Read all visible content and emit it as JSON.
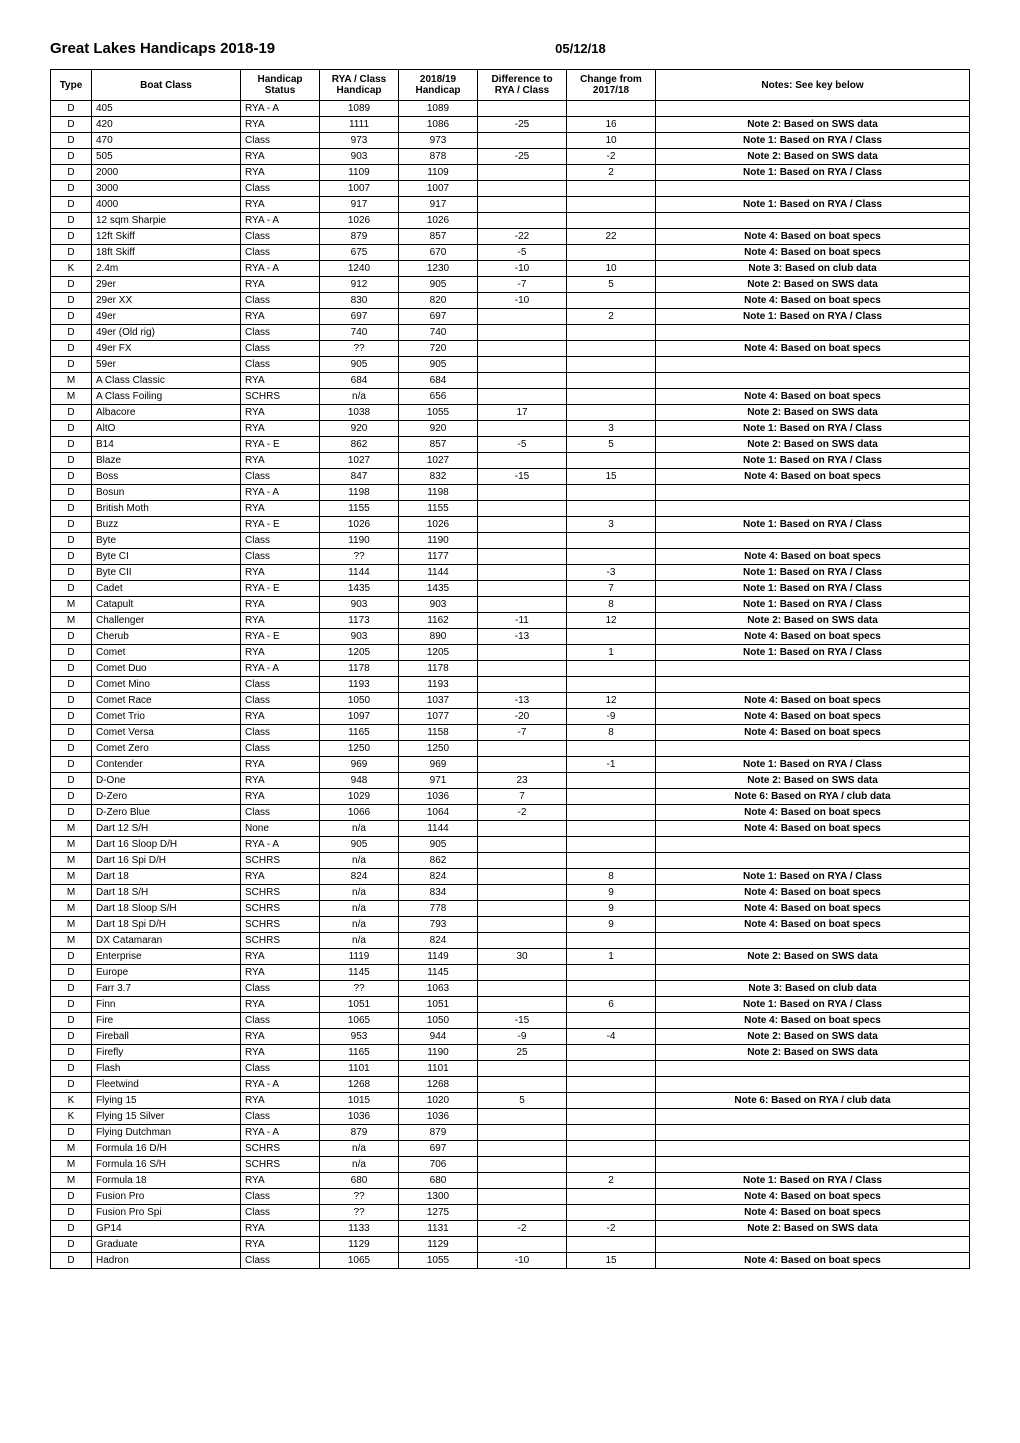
{
  "page": {
    "title": "Great Lakes Handicaps 2018-19",
    "date": "05/12/18"
  },
  "table": {
    "headers": {
      "type": "Type",
      "boatclass": "Boat Class",
      "status": "Handicap Status",
      "ryaclass": "RYA / Class Handicap",
      "h1819": "2018/19 Handicap",
      "diff": "Difference to RYA / Class",
      "change": "Change from 2017/18",
      "notes": "Notes:  See key below"
    },
    "rows": [
      {
        "type": "D",
        "boatclass": "405",
        "status": "RYA - A",
        "ryaclass": "1089",
        "h1819": "1089",
        "diff": "",
        "change": "",
        "notes": ""
      },
      {
        "type": "D",
        "boatclass": "420",
        "status": "RYA",
        "ryaclass": "1111",
        "h1819": "1086",
        "diff": "-25",
        "change": "16",
        "notes": "Note 2: Based on SWS data"
      },
      {
        "type": "D",
        "boatclass": "470",
        "status": "Class",
        "ryaclass": "973",
        "h1819": "973",
        "diff": "",
        "change": "10",
        "notes": "Note 1: Based on RYA / Class"
      },
      {
        "type": "D",
        "boatclass": "505",
        "status": "RYA",
        "ryaclass": "903",
        "h1819": "878",
        "diff": "-25",
        "change": "-2",
        "notes": "Note 2: Based on SWS data"
      },
      {
        "type": "D",
        "boatclass": "2000",
        "status": "RYA",
        "ryaclass": "1109",
        "h1819": "1109",
        "diff": "",
        "change": "2",
        "notes": "Note 1: Based on RYA / Class"
      },
      {
        "type": "D",
        "boatclass": "3000",
        "status": "Class",
        "ryaclass": "1007",
        "h1819": "1007",
        "diff": "",
        "change": "",
        "notes": ""
      },
      {
        "type": "D",
        "boatclass": "4000",
        "status": "RYA",
        "ryaclass": "917",
        "h1819": "917",
        "diff": "",
        "change": "",
        "notes": "Note 1: Based on RYA / Class"
      },
      {
        "type": "D",
        "boatclass": "12 sqm Sharpie",
        "status": "RYA - A",
        "ryaclass": "1026",
        "h1819": "1026",
        "diff": "",
        "change": "",
        "notes": ""
      },
      {
        "type": "D",
        "boatclass": "12ft Skiff",
        "status": "Class",
        "ryaclass": "879",
        "h1819": "857",
        "diff": "-22",
        "change": "22",
        "notes": "Note 4: Based on boat specs"
      },
      {
        "type": "D",
        "boatclass": "18ft Skiff",
        "status": "Class",
        "ryaclass": "675",
        "h1819": "670",
        "diff": "-5",
        "change": "",
        "notes": "Note 4: Based on boat specs"
      },
      {
        "type": "K",
        "boatclass": "2.4m",
        "status": "RYA - A",
        "ryaclass": "1240",
        "h1819": "1230",
        "diff": "-10",
        "change": "10",
        "notes": "Note 3: Based on club data"
      },
      {
        "type": "D",
        "boatclass": "29er",
        "status": "RYA",
        "ryaclass": "912",
        "h1819": "905",
        "diff": "-7",
        "change": "5",
        "notes": "Note 2: Based on SWS data"
      },
      {
        "type": "D",
        "boatclass": "29er XX",
        "status": "Class",
        "ryaclass": "830",
        "h1819": "820",
        "diff": "-10",
        "change": "",
        "notes": "Note 4: Based on boat specs"
      },
      {
        "type": "D",
        "boatclass": "49er",
        "status": "RYA",
        "ryaclass": "697",
        "h1819": "697",
        "diff": "",
        "change": "2",
        "notes": "Note 1: Based on RYA / Class"
      },
      {
        "type": "D",
        "boatclass": "49er (Old rig)",
        "status": "Class",
        "ryaclass": "740",
        "h1819": "740",
        "diff": "",
        "change": "",
        "notes": ""
      },
      {
        "type": "D",
        "boatclass": "49er FX",
        "status": "Class",
        "ryaclass": "??",
        "h1819": "720",
        "diff": "",
        "change": "",
        "notes": "Note 4: Based on boat specs"
      },
      {
        "type": "D",
        "boatclass": "59er",
        "status": "Class",
        "ryaclass": "905",
        "h1819": "905",
        "diff": "",
        "change": "",
        "notes": ""
      },
      {
        "type": "M",
        "boatclass": "A Class Classic",
        "status": "RYA",
        "ryaclass": "684",
        "h1819": "684",
        "diff": "",
        "change": "",
        "notes": ""
      },
      {
        "type": "M",
        "boatclass": "A Class Foiling",
        "status": "SCHRS",
        "ryaclass": "n/a",
        "h1819": "656",
        "diff": "",
        "change": "",
        "notes": "Note 4: Based on boat specs"
      },
      {
        "type": "D",
        "boatclass": "Albacore",
        "status": "RYA",
        "ryaclass": "1038",
        "h1819": "1055",
        "diff": "17",
        "change": "",
        "notes": "Note 2: Based on SWS data"
      },
      {
        "type": "D",
        "boatclass": "AltO",
        "status": "RYA",
        "ryaclass": "920",
        "h1819": "920",
        "diff": "",
        "change": "3",
        "notes": "Note 1: Based on RYA / Class"
      },
      {
        "type": "D",
        "boatclass": "B14",
        "status": "RYA - E",
        "ryaclass": "862",
        "h1819": "857",
        "diff": "-5",
        "change": "5",
        "notes": "Note 2: Based on SWS data"
      },
      {
        "type": "D",
        "boatclass": "Blaze",
        "status": "RYA",
        "ryaclass": "1027",
        "h1819": "1027",
        "diff": "",
        "change": "",
        "notes": "Note 1: Based on RYA / Class"
      },
      {
        "type": "D",
        "boatclass": "Boss",
        "status": "Class",
        "ryaclass": "847",
        "h1819": "832",
        "diff": "-15",
        "change": "15",
        "notes": "Note 4: Based on boat specs"
      },
      {
        "type": "D",
        "boatclass": "Bosun",
        "status": "RYA - A",
        "ryaclass": "1198",
        "h1819": "1198",
        "diff": "",
        "change": "",
        "notes": ""
      },
      {
        "type": "D",
        "boatclass": "British Moth",
        "status": "RYA",
        "ryaclass": "1155",
        "h1819": "1155",
        "diff": "",
        "change": "",
        "notes": ""
      },
      {
        "type": "D",
        "boatclass": "Buzz",
        "status": "RYA - E",
        "ryaclass": "1026",
        "h1819": "1026",
        "diff": "",
        "change": "3",
        "notes": "Note 1: Based on RYA / Class"
      },
      {
        "type": "D",
        "boatclass": "Byte",
        "status": "Class",
        "ryaclass": "1190",
        "h1819": "1190",
        "diff": "",
        "change": "",
        "notes": ""
      },
      {
        "type": "D",
        "boatclass": "Byte CI",
        "status": "Class",
        "ryaclass": "??",
        "h1819": "1177",
        "diff": "",
        "change": "",
        "notes": "Note 4: Based on boat specs"
      },
      {
        "type": "D",
        "boatclass": "Byte CII",
        "status": "RYA",
        "ryaclass": "1144",
        "h1819": "1144",
        "diff": "",
        "change": "-3",
        "notes": "Note 1: Based on RYA / Class"
      },
      {
        "type": "D",
        "boatclass": "Cadet",
        "status": "RYA - E",
        "ryaclass": "1435",
        "h1819": "1435",
        "diff": "",
        "change": "7",
        "notes": "Note 1: Based on RYA / Class"
      },
      {
        "type": "M",
        "boatclass": "Catapult",
        "status": "RYA",
        "ryaclass": "903",
        "h1819": "903",
        "diff": "",
        "change": "8",
        "notes": "Note 1: Based on RYA / Class"
      },
      {
        "type": "M",
        "boatclass": "Challenger",
        "status": "RYA",
        "ryaclass": "1173",
        "h1819": "1162",
        "diff": "-11",
        "change": "12",
        "notes": "Note 2: Based on SWS data"
      },
      {
        "type": "D",
        "boatclass": "Cherub",
        "status": "RYA - E",
        "ryaclass": "903",
        "h1819": "890",
        "diff": "-13",
        "change": "",
        "notes": "Note 4: Based on boat specs"
      },
      {
        "type": "D",
        "boatclass": "Comet",
        "status": "RYA",
        "ryaclass": "1205",
        "h1819": "1205",
        "diff": "",
        "change": "1",
        "notes": "Note 1: Based on RYA / Class"
      },
      {
        "type": "D",
        "boatclass": "Comet Duo",
        "status": "RYA - A",
        "ryaclass": "1178",
        "h1819": "1178",
        "diff": "",
        "change": "",
        "notes": ""
      },
      {
        "type": "D",
        "boatclass": "Comet Mino",
        "status": "Class",
        "ryaclass": "1193",
        "h1819": "1193",
        "diff": "",
        "change": "",
        "notes": ""
      },
      {
        "type": "D",
        "boatclass": "Comet Race",
        "status": "Class",
        "ryaclass": "1050",
        "h1819": "1037",
        "diff": "-13",
        "change": "12",
        "notes": "Note 4: Based on boat specs"
      },
      {
        "type": "D",
        "boatclass": "Comet Trio",
        "status": "RYA",
        "ryaclass": "1097",
        "h1819": "1077",
        "diff": "-20",
        "change": "-9",
        "notes": "Note 4: Based on boat specs"
      },
      {
        "type": "D",
        "boatclass": "Comet Versa",
        "status": "Class",
        "ryaclass": "1165",
        "h1819": "1158",
        "diff": "-7",
        "change": "8",
        "notes": "Note 4: Based on boat specs"
      },
      {
        "type": "D",
        "boatclass": "Comet Zero",
        "status": "Class",
        "ryaclass": "1250",
        "h1819": "1250",
        "diff": "",
        "change": "",
        "notes": ""
      },
      {
        "type": "D",
        "boatclass": "Contender",
        "status": "RYA",
        "ryaclass": "969",
        "h1819": "969",
        "diff": "",
        "change": "-1",
        "notes": "Note 1: Based on RYA / Class"
      },
      {
        "type": "D",
        "boatclass": "D-One",
        "status": "RYA",
        "ryaclass": "948",
        "h1819": "971",
        "diff": "23",
        "change": "",
        "notes": "Note 2: Based on SWS data"
      },
      {
        "type": "D",
        "boatclass": "D-Zero",
        "status": "RYA",
        "ryaclass": "1029",
        "h1819": "1036",
        "diff": "7",
        "change": "",
        "notes": "Note 6: Based on RYA / club data"
      },
      {
        "type": "D",
        "boatclass": "D-Zero Blue",
        "status": "Class",
        "ryaclass": "1066",
        "h1819": "1064",
        "diff": "-2",
        "change": "",
        "notes": "Note 4: Based on boat specs"
      },
      {
        "type": "M",
        "boatclass": "Dart 12 S/H",
        "status": "None",
        "ryaclass": "n/a",
        "h1819": "1144",
        "diff": "",
        "change": "",
        "notes": "Note 4: Based on boat specs"
      },
      {
        "type": "M",
        "boatclass": "Dart 16 Sloop D/H",
        "status": "RYA - A",
        "ryaclass": "905",
        "h1819": "905",
        "diff": "",
        "change": "",
        "notes": ""
      },
      {
        "type": "M",
        "boatclass": "Dart 16 Spi D/H",
        "status": "SCHRS",
        "ryaclass": "n/a",
        "h1819": "862",
        "diff": "",
        "change": "",
        "notes": ""
      },
      {
        "type": "M",
        "boatclass": "Dart 18",
        "status": "RYA",
        "ryaclass": "824",
        "h1819": "824",
        "diff": "",
        "change": "8",
        "notes": "Note 1: Based on RYA / Class"
      },
      {
        "type": "M",
        "boatclass": "Dart 18 S/H",
        "status": "SCHRS",
        "ryaclass": "n/a",
        "h1819": "834",
        "diff": "",
        "change": "9",
        "notes": "Note 4: Based on boat specs"
      },
      {
        "type": "M",
        "boatclass": "Dart 18 Sloop S/H",
        "status": "SCHRS",
        "ryaclass": "n/a",
        "h1819": "778",
        "diff": "",
        "change": "9",
        "notes": "Note 4: Based on boat specs"
      },
      {
        "type": "M",
        "boatclass": "Dart 18 Spi D/H",
        "status": "SCHRS",
        "ryaclass": "n/a",
        "h1819": "793",
        "diff": "",
        "change": "9",
        "notes": "Note 4: Based on boat specs"
      },
      {
        "type": "M",
        "boatclass": "DX Catamaran",
        "status": "SCHRS",
        "ryaclass": "n/a",
        "h1819": "824",
        "diff": "",
        "change": "",
        "notes": ""
      },
      {
        "type": "D",
        "boatclass": "Enterprise",
        "status": "RYA",
        "ryaclass": "1119",
        "h1819": "1149",
        "diff": "30",
        "change": "1",
        "notes": "Note 2: Based on SWS data"
      },
      {
        "type": "D",
        "boatclass": "Europe",
        "status": "RYA",
        "ryaclass": "1145",
        "h1819": "1145",
        "diff": "",
        "change": "",
        "notes": ""
      },
      {
        "type": "D",
        "boatclass": "Farr 3.7",
        "status": "Class",
        "ryaclass": "??",
        "h1819": "1063",
        "diff": "",
        "change": "",
        "notes": "Note 3: Based on club data"
      },
      {
        "type": "D",
        "boatclass": "Finn",
        "status": "RYA",
        "ryaclass": "1051",
        "h1819": "1051",
        "diff": "",
        "change": "6",
        "notes": "Note 1: Based on RYA / Class"
      },
      {
        "type": "D",
        "boatclass": "Fire",
        "status": "Class",
        "ryaclass": "1065",
        "h1819": "1050",
        "diff": "-15",
        "change": "",
        "notes": "Note 4: Based on boat specs"
      },
      {
        "type": "D",
        "boatclass": "Fireball",
        "status": "RYA",
        "ryaclass": "953",
        "h1819": "944",
        "diff": "-9",
        "change": "-4",
        "notes": "Note 2: Based on SWS data"
      },
      {
        "type": "D",
        "boatclass": "Firefly",
        "status": "RYA",
        "ryaclass": "1165",
        "h1819": "1190",
        "diff": "25",
        "change": "",
        "notes": "Note 2: Based on SWS data"
      },
      {
        "type": "D",
        "boatclass": "Flash",
        "status": "Class",
        "ryaclass": "1101",
        "h1819": "1101",
        "diff": "",
        "change": "",
        "notes": ""
      },
      {
        "type": "D",
        "boatclass": "Fleetwind",
        "status": "RYA - A",
        "ryaclass": "1268",
        "h1819": "1268",
        "diff": "",
        "change": "",
        "notes": ""
      },
      {
        "type": "K",
        "boatclass": "Flying 15",
        "status": "RYA",
        "ryaclass": "1015",
        "h1819": "1020",
        "diff": "5",
        "change": "",
        "notes": "Note 6: Based on RYA / club data"
      },
      {
        "type": "K",
        "boatclass": "Flying 15 Silver",
        "status": "Class",
        "ryaclass": "1036",
        "h1819": "1036",
        "diff": "",
        "change": "",
        "notes": ""
      },
      {
        "type": "D",
        "boatclass": "Flying Dutchman",
        "status": "RYA - A",
        "ryaclass": "879",
        "h1819": "879",
        "diff": "",
        "change": "",
        "notes": ""
      },
      {
        "type": "M",
        "boatclass": "Formula 16 D/H",
        "status": "SCHRS",
        "ryaclass": "n/a",
        "h1819": "697",
        "diff": "",
        "change": "",
        "notes": ""
      },
      {
        "type": "M",
        "boatclass": "Formula 16 S/H",
        "status": "SCHRS",
        "ryaclass": "n/a",
        "h1819": "706",
        "diff": "",
        "change": "",
        "notes": ""
      },
      {
        "type": "M",
        "boatclass": "Formula 18",
        "status": "RYA",
        "ryaclass": "680",
        "h1819": "680",
        "diff": "",
        "change": "2",
        "notes": "Note 1: Based on RYA / Class"
      },
      {
        "type": "D",
        "boatclass": "Fusion Pro",
        "status": "Class",
        "ryaclass": "??",
        "h1819": "1300",
        "diff": "",
        "change": "",
        "notes": "Note 4: Based on boat specs"
      },
      {
        "type": "D",
        "boatclass": "Fusion Pro Spi",
        "status": "Class",
        "ryaclass": "??",
        "h1819": "1275",
        "diff": "",
        "change": "",
        "notes": "Note 4: Based on boat specs"
      },
      {
        "type": "D",
        "boatclass": "GP14",
        "status": "RYA",
        "ryaclass": "1133",
        "h1819": "1131",
        "diff": "-2",
        "change": "-2",
        "notes": "Note 2: Based on SWS data"
      },
      {
        "type": "D",
        "boatclass": "Graduate",
        "status": "RYA",
        "ryaclass": "1129",
        "h1819": "1129",
        "diff": "",
        "change": "",
        "notes": ""
      },
      {
        "type": "D",
        "boatclass": "Hadron",
        "status": "Class",
        "ryaclass": "1065",
        "h1819": "1055",
        "diff": "-10",
        "change": "15",
        "notes": "Note 4: Based on boat specs"
      }
    ]
  }
}
